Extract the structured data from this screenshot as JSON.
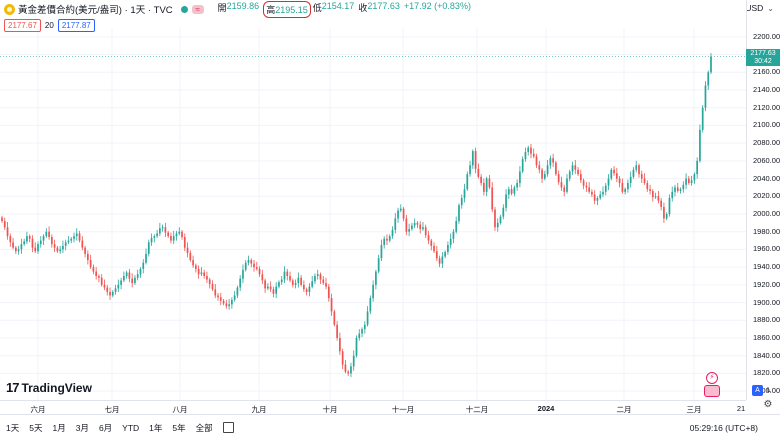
{
  "header": {
    "title": "黃金差價合約(美元/盎司) · 1天 · TVC",
    "ohlc": [
      {
        "label": "開",
        "value": "2159.86"
      },
      {
        "label": "高",
        "value": "2195.15"
      },
      {
        "label": "低",
        "value": "2154.17"
      },
      {
        "label": "收",
        "value": "2177.63"
      },
      {
        "label": "",
        "value": "+17.92 (+0.83%)"
      }
    ],
    "wave_glyph": "≈",
    "currency": "USD",
    "currency_chevron": "⌄"
  },
  "row2": {
    "bid": "2177.67",
    "spread": "20",
    "ask": "2177.87"
  },
  "price_label": {
    "price": "2177.63",
    "countdown": "30:42"
  },
  "logo": {
    "mark": "17",
    "text": "TradingView"
  },
  "footer": {
    "periods": [
      "1天",
      "5天",
      "1月",
      "3月",
      "6月",
      "YTD",
      "1年",
      "5年",
      "全部"
    ],
    "clock": "05:29:16 (UTC+8)"
  },
  "scale_buttons": {
    "auto": "A",
    "log": "L"
  },
  "colors": {
    "up": "#26a69a",
    "down": "#ef5350",
    "grid": "#f0f3fa"
  },
  "chart_data": {
    "type": "candlestick",
    "ylim": [
      1790,
      2210
    ],
    "y_ticks": [
      1800,
      1820,
      1840,
      1860,
      1880,
      1900,
      1920,
      1940,
      1960,
      1980,
      2000,
      2020,
      2040,
      2060,
      2080,
      2100,
      2120,
      2140,
      2160,
      2180,
      2200
    ],
    "x_ticks": [
      "六月",
      "七月",
      "八月",
      "九月",
      "十月",
      "十一月",
      "十二月",
      "2024",
      "二月",
      "三月",
      "21"
    ],
    "close": [
      1992,
      1985,
      1975,
      1968,
      1962,
      1958,
      1960,
      1966,
      1969,
      1975,
      1972,
      1962,
      1958,
      1966,
      1970,
      1975,
      1980,
      1974,
      1966,
      1962,
      1958,
      1960,
      1964,
      1968,
      1970,
      1972,
      1975,
      1978,
      1970,
      1962,
      1955,
      1948,
      1940,
      1935,
      1930,
      1928,
      1920,
      1917,
      1912,
      1908,
      1912,
      1916,
      1920,
      1925,
      1930,
      1934,
      1927,
      1922,
      1928,
      1932,
      1938,
      1945,
      1955,
      1968,
      1973,
      1975,
      1978,
      1984,
      1985,
      1979,
      1975,
      1970,
      1975,
      1978,
      1980,
      1974,
      1962,
      1956,
      1948,
      1942,
      1938,
      1932,
      1934,
      1930,
      1926,
      1921,
      1915,
      1908,
      1906,
      1902,
      1899,
      1896,
      1898,
      1903,
      1908,
      1917,
      1927,
      1937,
      1945,
      1948,
      1944,
      1940,
      1938,
      1932,
      1925,
      1916,
      1918,
      1915,
      1910,
      1918,
      1923,
      1926,
      1935,
      1930,
      1925,
      1920,
      1922,
      1928,
      1920,
      1915,
      1912,
      1918,
      1924,
      1930,
      1932,
      1926,
      1922,
      1918,
      1905,
      1890,
      1875,
      1860,
      1845,
      1830,
      1822,
      1820,
      1828,
      1840,
      1860,
      1865,
      1870,
      1875,
      1890,
      1905,
      1920,
      1935,
      1950,
      1965,
      1972,
      1970,
      1975,
      1982,
      1995,
      2004,
      2006,
      1995,
      1980,
      1983,
      1987,
      1990,
      1988,
      1983,
      1985,
      1976,
      1970,
      1964,
      1958,
      1950,
      1944,
      1952,
      1957,
      1965,
      1972,
      1980,
      1992,
      2010,
      2018,
      2028,
      2045,
      2055,
      2071,
      2051,
      2042,
      2035,
      2025,
      2040,
      2030,
      2005,
      1985,
      1990,
      1997,
      2007,
      2022,
      2028,
      2023,
      2030,
      2035,
      2048,
      2062,
      2070,
      2075,
      2068,
      2065,
      2055,
      2050,
      2040,
      2045,
      2055,
      2063,
      2058,
      2045,
      2036,
      2030,
      2025,
      2040,
      2048,
      2055,
      2050,
      2045,
      2038,
      2032,
      2030,
      2025,
      2022,
      2015,
      2018,
      2022,
      2025,
      2032,
      2040,
      2050,
      2046,
      2040,
      2035,
      2025,
      2028,
      2035,
      2042,
      2050,
      2055,
      2045,
      2040,
      2035,
      2028,
      2026,
      2019,
      2020,
      2015,
      2008,
      1995,
      2000,
      2018,
      2025,
      2030,
      2026,
      2028,
      2033,
      2040,
      2035,
      2038,
      2045,
      2060,
      2095,
      2120,
      2145,
      2160,
      2177.63
    ]
  }
}
